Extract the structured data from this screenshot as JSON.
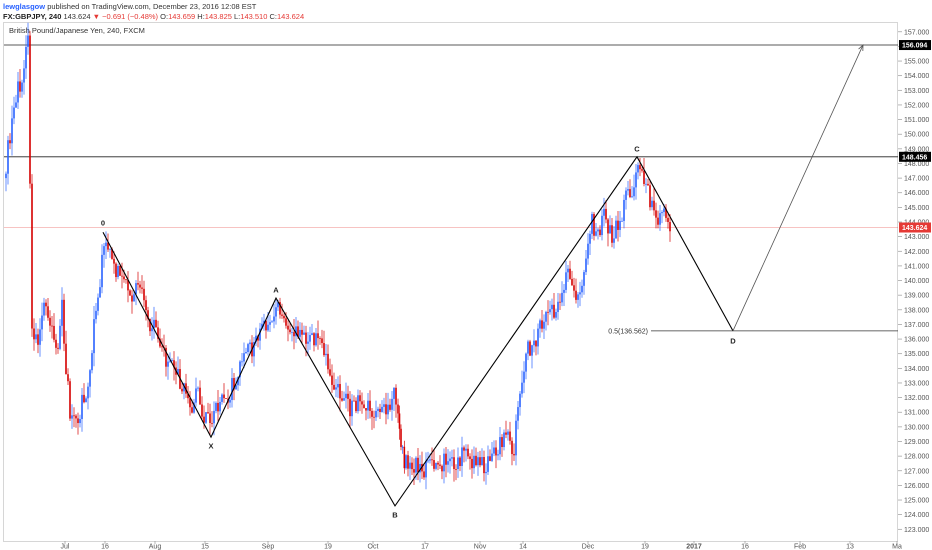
{
  "header": {
    "author": "lewglasgow",
    "published": "published on TradingView.com, December 23, 2016 12:08 EST",
    "symbol": "FX:GBPJPY, 240",
    "last": "143.624",
    "change": "▼ −0.691 (−0.48%)",
    "o_label": "O:",
    "o_value": "143.659",
    "h_label": "H:",
    "h_value": "143.825",
    "l_label": "L:",
    "l_value": "143.510",
    "c_label": "C:",
    "c_value": "143.624"
  },
  "chart_data": {
    "type": "candlestick",
    "title": "British Pound/Japanese Yen, 240, FXCM",
    "ylim": [
      122.2,
      157.6
    ],
    "y_ticks": [
      123.0,
      124.0,
      125.0,
      126.0,
      127.0,
      128.0,
      129.0,
      130.0,
      131.0,
      132.0,
      133.0,
      134.0,
      135.0,
      136.0,
      137.0,
      138.0,
      139.0,
      140.0,
      141.0,
      142.0,
      143.0,
      144.0,
      145.0,
      146.0,
      147.0,
      148.0,
      149.0,
      150.0,
      151.0,
      152.0,
      153.0,
      154.0,
      155.0,
      156.0,
      157.0
    ],
    "x_ticks": [
      "Jul",
      "16",
      "Aug",
      "15",
      "Sep",
      "19",
      "Oct",
      "17",
      "Nov",
      "14",
      "Dec",
      "19",
      "2017",
      "16",
      "Feb",
      "13",
      "Ma"
    ],
    "grid": false,
    "colors": {
      "up": "#2962ff",
      "down": "#d50000",
      "pattern": "#000000",
      "projection": "#555555",
      "current_price": "#e53935",
      "level_tag": "#000000"
    },
    "horizontal_levels": [
      {
        "price": 156.094,
        "label": "156.094",
        "style": "solid"
      },
      {
        "price": 148.456,
        "label": "148.456",
        "style": "solid"
      },
      {
        "price": 143.624,
        "label": "143.624",
        "style": "current"
      }
    ],
    "pattern_points": [
      {
        "label": "0",
        "price": 143.3
      },
      {
        "label": "X",
        "price": 129.3
      },
      {
        "label": "A",
        "price": 138.8
      },
      {
        "label": "B",
        "price": 124.6
      },
      {
        "label": "C",
        "price": 148.456
      },
      {
        "label": "D",
        "price": 136.562
      }
    ],
    "fib_level": {
      "label": "0.5(136.562)",
      "price": 136.562
    },
    "projection_target": 156.094,
    "price_path": [
      [
        0,
        147.0
      ],
      [
        10,
        152.0
      ],
      [
        20,
        154.5
      ],
      [
        24,
        157.2
      ],
      [
        28,
        137.0
      ],
      [
        34,
        135.5
      ],
      [
        40,
        138.5
      ],
      [
        46,
        137.0
      ],
      [
        52,
        135.0
      ],
      [
        58,
        138.0
      ],
      [
        62,
        134.0
      ],
      [
        66,
        131.0
      ],
      [
        72,
        130.2
      ],
      [
        78,
        131.5
      ],
      [
        84,
        132.5
      ],
      [
        90,
        137.0
      ],
      [
        96,
        140.0
      ],
      [
        100,
        142.5
      ],
      [
        104,
        142.0
      ],
      [
        110,
        141.0
      ],
      [
        116,
        140.0
      ],
      [
        122,
        139.5
      ],
      [
        128,
        139.0
      ],
      [
        134,
        140.0
      ],
      [
        140,
        138.5
      ],
      [
        146,
        137.0
      ],
      [
        152,
        136.5
      ],
      [
        158,
        135.0
      ],
      [
        164,
        134.5
      ],
      [
        170,
        134.0
      ],
      [
        176,
        133.0
      ],
      [
        182,
        132.5
      ],
      [
        188,
        131.5
      ],
      [
        194,
        132.8
      ],
      [
        198,
        131.0
      ],
      [
        204,
        130.5
      ],
      [
        210,
        131.0
      ],
      [
        216,
        131.8
      ],
      [
        222,
        132.0
      ],
      [
        228,
        132.8
      ],
      [
        234,
        133.8
      ],
      [
        240,
        134.5
      ],
      [
        246,
        135.2
      ],
      [
        252,
        135.8
      ],
      [
        258,
        136.5
      ],
      [
        262,
        137.2
      ],
      [
        266,
        137.5
      ],
      [
        270,
        138.2
      ],
      [
        274,
        138.6
      ],
      [
        278,
        138.0
      ],
      [
        282,
        137.5
      ],
      [
        288,
        136.5
      ],
      [
        294,
        136.8
      ],
      [
        300,
        136.2
      ],
      [
        306,
        136.5
      ],
      [
        312,
        136.0
      ],
      [
        318,
        135.5
      ],
      [
        324,
        133.8
      ],
      [
        330,
        133.0
      ],
      [
        336,
        132.5
      ],
      [
        342,
        131.8
      ],
      [
        348,
        131.2
      ],
      [
        354,
        131.5
      ],
      [
        360,
        131.0
      ],
      [
        366,
        131.3
      ],
      [
        372,
        131.0
      ],
      [
        378,
        131.5
      ],
      [
        384,
        131.2
      ],
      [
        390,
        132.0
      ],
      [
        394,
        131.0
      ],
      [
        397,
        128.5
      ],
      [
        402,
        127.5
      ],
      [
        406,
        127.0
      ],
      [
        410,
        127.5
      ],
      [
        416,
        127.3
      ],
      [
        422,
        127.0
      ],
      [
        428,
        127.3
      ],
      [
        434,
        127.0
      ],
      [
        440,
        127.5
      ],
      [
        446,
        127.8
      ],
      [
        452,
        127.5
      ],
      [
        458,
        128.0
      ],
      [
        464,
        127.8
      ],
      [
        470,
        127.5
      ],
      [
        476,
        127.8
      ],
      [
        482,
        127.0
      ],
      [
        488,
        128.0
      ],
      [
        494,
        128.3
      ],
      [
        500,
        129.5
      ],
      [
        506,
        129.0
      ],
      [
        510,
        127.5
      ],
      [
        514,
        132.0
      ],
      [
        518,
        133.5
      ],
      [
        522,
        135.0
      ],
      [
        528,
        135.5
      ],
      [
        534,
        136.5
      ],
      [
        540,
        137.0
      ],
      [
        546,
        137.5
      ],
      [
        552,
        138.0
      ],
      [
        558,
        139.0
      ],
      [
        564,
        140.5
      ],
      [
        570,
        139.0
      ],
      [
        576,
        138.5
      ],
      [
        580,
        140.0
      ],
      [
        584,
        142.5
      ],
      [
        588,
        144.0
      ],
      [
        592,
        143.5
      ],
      [
        596,
        143.2
      ],
      [
        600,
        144.5
      ],
      [
        604,
        143.5
      ],
      [
        608,
        143.2
      ],
      [
        612,
        143.5
      ],
      [
        618,
        144.5
      ],
      [
        622,
        145.5
      ],
      [
        626,
        146.0
      ],
      [
        630,
        146.5
      ],
      [
        634,
        147.5
      ],
      [
        638,
        147.0
      ],
      [
        642,
        146.5
      ],
      [
        646,
        145.5
      ],
      [
        650,
        145.0
      ],
      [
        654,
        144.5
      ],
      [
        658,
        144.2
      ],
      [
        662,
        144.5
      ],
      [
        666,
        143.7
      ]
    ]
  }
}
